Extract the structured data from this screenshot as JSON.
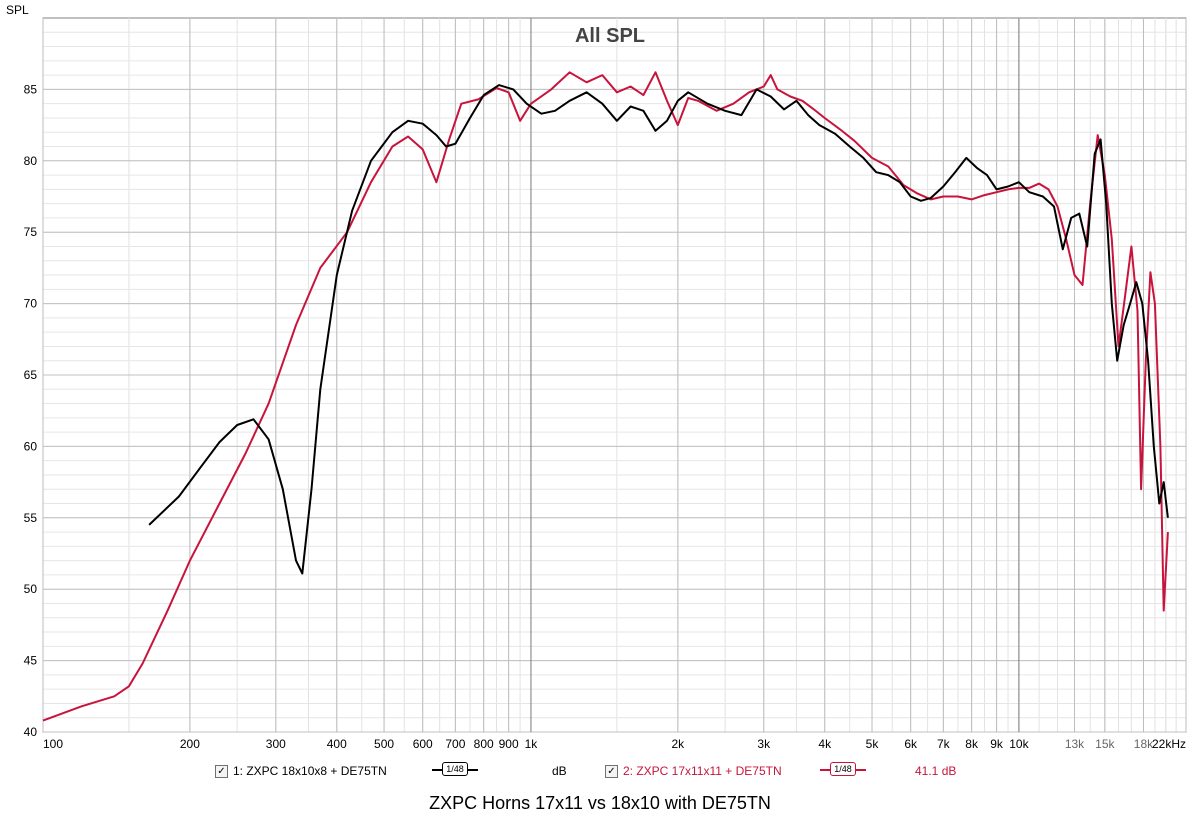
{
  "chart_data": {
    "type": "line",
    "title": "All SPL",
    "ylabel": "SPL",
    "xscale": "log",
    "xlim": [
      100,
      22000
    ],
    "ylim": [
      40,
      90
    ],
    "yticks": [
      40,
      45,
      50,
      55,
      60,
      65,
      70,
      75,
      80,
      85
    ],
    "xticks": [
      {
        "value": 100,
        "label": "100"
      },
      {
        "value": 200,
        "label": "200"
      },
      {
        "value": 300,
        "label": "300"
      },
      {
        "value": 400,
        "label": "400"
      },
      {
        "value": 500,
        "label": "500"
      },
      {
        "value": 600,
        "label": "600"
      },
      {
        "value": 700,
        "label": "700"
      },
      {
        "value": 800,
        "label": "800"
      },
      {
        "value": 900,
        "label": "900"
      },
      {
        "value": 1000,
        "label": "1k"
      },
      {
        "value": 2000,
        "label": "2k"
      },
      {
        "value": 3000,
        "label": "3k"
      },
      {
        "value": 4000,
        "label": "4k"
      },
      {
        "value": 5000,
        "label": "5k"
      },
      {
        "value": 6000,
        "label": "6k"
      },
      {
        "value": 7000,
        "label": "7k"
      },
      {
        "value": 8000,
        "label": "8k"
      },
      {
        "value": 9000,
        "label": "9k"
      },
      {
        "value": 10000,
        "label": "10k"
      },
      {
        "value": 13000,
        "label": "13k"
      },
      {
        "value": 15000,
        "label": "15k"
      },
      {
        "value": 18000,
        "label": "18k"
      },
      {
        "value": 22000,
        "label": "22kHz"
      }
    ],
    "grid": true,
    "series": [
      {
        "name": "1: ZXPC 18x10x8 + DE75TN",
        "color": "#000000",
        "smoothing": "1/48",
        "offset_label": "dB",
        "points": [
          [
            165,
            54.5
          ],
          [
            190,
            56.5
          ],
          [
            210,
            58.5
          ],
          [
            230,
            60.3
          ],
          [
            250,
            61.5
          ],
          [
            270,
            61.9
          ],
          [
            290,
            60.5
          ],
          [
            310,
            57
          ],
          [
            330,
            52
          ],
          [
            340,
            51.1
          ],
          [
            355,
            57
          ],
          [
            370,
            64
          ],
          [
            400,
            72
          ],
          [
            430,
            76.5
          ],
          [
            470,
            80
          ],
          [
            520,
            82
          ],
          [
            560,
            82.8
          ],
          [
            600,
            82.6
          ],
          [
            640,
            81.8
          ],
          [
            670,
            81
          ],
          [
            700,
            81.2
          ],
          [
            750,
            83
          ],
          [
            800,
            84.6
          ],
          [
            860,
            85.3
          ],
          [
            920,
            85
          ],
          [
            980,
            84
          ],
          [
            1050,
            83.3
          ],
          [
            1120,
            83.5
          ],
          [
            1200,
            84.2
          ],
          [
            1300,
            84.8
          ],
          [
            1400,
            84
          ],
          [
            1500,
            82.8
          ],
          [
            1600,
            83.8
          ],
          [
            1700,
            83.5
          ],
          [
            1800,
            82.1
          ],
          [
            1900,
            82.8
          ],
          [
            2000,
            84.2
          ],
          [
            2100,
            84.8
          ],
          [
            2300,
            84
          ],
          [
            2500,
            83.5
          ],
          [
            2700,
            83.2
          ],
          [
            2900,
            85
          ],
          [
            3100,
            84.5
          ],
          [
            3300,
            83.6
          ],
          [
            3500,
            84.2
          ],
          [
            3700,
            83.2
          ],
          [
            3900,
            82.5
          ],
          [
            4200,
            81.9
          ],
          [
            4500,
            81
          ],
          [
            4800,
            80.2
          ],
          [
            5100,
            79.2
          ],
          [
            5400,
            79
          ],
          [
            5700,
            78.5
          ],
          [
            6000,
            77.5
          ],
          [
            6300,
            77.2
          ],
          [
            6600,
            77.4
          ],
          [
            7000,
            78.2
          ],
          [
            7400,
            79.2
          ],
          [
            7800,
            80.2
          ],
          [
            8200,
            79.5
          ],
          [
            8600,
            79
          ],
          [
            9000,
            78
          ],
          [
            9500,
            78.2
          ],
          [
            10000,
            78.5
          ],
          [
            10500,
            77.8
          ],
          [
            11200,
            77.5
          ],
          [
            11800,
            76.8
          ],
          [
            12300,
            73.8
          ],
          [
            12800,
            76
          ],
          [
            13300,
            76.3
          ],
          [
            13800,
            74
          ],
          [
            14300,
            80.5
          ],
          [
            14700,
            81.5
          ],
          [
            15100,
            77
          ],
          [
            15500,
            70
          ],
          [
            15900,
            66
          ],
          [
            16400,
            68.5
          ],
          [
            16900,
            70
          ],
          [
            17400,
            71.5
          ],
          [
            17900,
            70
          ],
          [
            18400,
            66
          ],
          [
            18900,
            60
          ],
          [
            19400,
            56
          ],
          [
            19800,
            57.5
          ],
          [
            20200,
            55
          ]
        ]
      },
      {
        "name": "2: ZXPC 17x11x11 + DE75TN",
        "color": "#c8143c",
        "smoothing": "1/48",
        "offset_label": "41.1 dB",
        "points": [
          [
            100,
            40.8
          ],
          [
            120,
            41.8
          ],
          [
            140,
            42.5
          ],
          [
            150,
            43.2
          ],
          [
            160,
            44.8
          ],
          [
            180,
            48.5
          ],
          [
            200,
            52
          ],
          [
            230,
            56
          ],
          [
            260,
            59.5
          ],
          [
            290,
            63
          ],
          [
            330,
            68.5
          ],
          [
            370,
            72.5
          ],
          [
            420,
            75
          ],
          [
            470,
            78.5
          ],
          [
            520,
            81
          ],
          [
            560,
            81.7
          ],
          [
            600,
            80.8
          ],
          [
            640,
            78.5
          ],
          [
            680,
            81.5
          ],
          [
            720,
            84
          ],
          [
            780,
            84.3
          ],
          [
            850,
            85.1
          ],
          [
            900,
            84.8
          ],
          [
            950,
            82.8
          ],
          [
            1000,
            84
          ],
          [
            1100,
            85
          ],
          [
            1200,
            86.2
          ],
          [
            1300,
            85.5
          ],
          [
            1400,
            86
          ],
          [
            1500,
            84.8
          ],
          [
            1600,
            85.2
          ],
          [
            1700,
            84.6
          ],
          [
            1800,
            86.2
          ],
          [
            1900,
            84.2
          ],
          [
            2000,
            82.5
          ],
          [
            2100,
            84.4
          ],
          [
            2200,
            84.2
          ],
          [
            2400,
            83.5
          ],
          [
            2600,
            84
          ],
          [
            2800,
            84.8
          ],
          [
            3000,
            85.2
          ],
          [
            3100,
            86
          ],
          [
            3200,
            85
          ],
          [
            3400,
            84.5
          ],
          [
            3600,
            84.2
          ],
          [
            3800,
            83.6
          ],
          [
            4000,
            83
          ],
          [
            4300,
            82.2
          ],
          [
            4600,
            81.4
          ],
          [
            5000,
            80.2
          ],
          [
            5400,
            79.6
          ],
          [
            5800,
            78.3
          ],
          [
            6200,
            77.7
          ],
          [
            6600,
            77.3
          ],
          [
            7000,
            77.5
          ],
          [
            7500,
            77.5
          ],
          [
            8000,
            77.3
          ],
          [
            8500,
            77.6
          ],
          [
            9000,
            77.8
          ],
          [
            9500,
            78
          ],
          [
            10000,
            78.1
          ],
          [
            10500,
            78.1
          ],
          [
            11000,
            78.4
          ],
          [
            11500,
            78
          ],
          [
            12000,
            76.8
          ],
          [
            12500,
            74.5
          ],
          [
            13000,
            72
          ],
          [
            13500,
            71.3
          ],
          [
            14000,
            77
          ],
          [
            14500,
            81.8
          ],
          [
            15000,
            79
          ],
          [
            15500,
            74.5
          ],
          [
            16000,
            67
          ],
          [
            16500,
            70.5
          ],
          [
            17000,
            74
          ],
          [
            17500,
            69.5
          ],
          [
            17800,
            57
          ],
          [
            18200,
            66
          ],
          [
            18600,
            72.2
          ],
          [
            19000,
            70
          ],
          [
            19500,
            60
          ],
          [
            19800,
            48.5
          ],
          [
            20200,
            54
          ]
        ]
      }
    ],
    "caption": "ZXPC Horns 17x11 vs 18x10 with DE75TN"
  },
  "legend": [
    {
      "checked": "✓",
      "label": "1: ZXPC 18x10x8 + DE75TN",
      "smoothing": "1/48",
      "offset": "dB",
      "color": "#000000"
    },
    {
      "checked": "✓",
      "label": "2: ZXPC 17x11x11 + DE75TN",
      "smoothing": "1/48",
      "offset": "41.1 dB",
      "color": "#c8143c"
    }
  ]
}
